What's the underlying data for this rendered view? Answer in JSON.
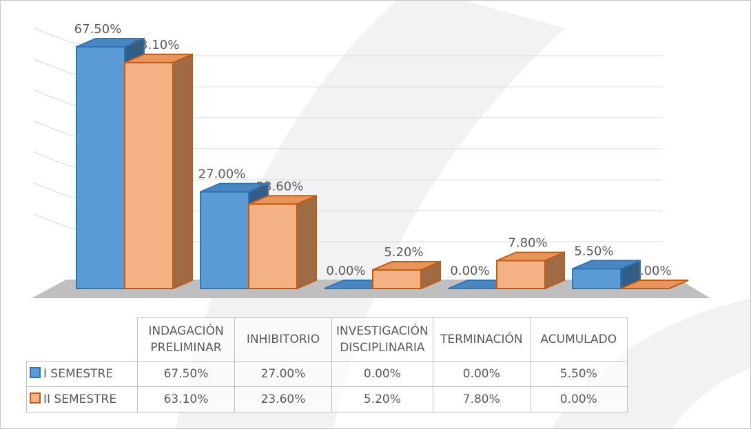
{
  "chart_data": {
    "type": "bar3d",
    "categories": [
      "INDAGACIÓN PRELIMINAR",
      "INHIBITORIO",
      "INVESTIGACIÓN DISCIPLINARIA",
      "TERMINACIÓN",
      "ACUMULADO"
    ],
    "series": [
      {
        "name": "I SEMESTRE",
        "color": "#5b9bd5",
        "values": [
          67.5,
          27,
          0,
          0,
          5.5
        ],
        "value_labels": [
          "67.50%",
          "27.00%",
          "0.00%",
          "0.00%",
          "5.50%"
        ]
      },
      {
        "name": "II SEMESTRE",
        "color": "#f4b183",
        "values": [
          63.1,
          23.6,
          5.2,
          7.8,
          0
        ],
        "value_labels": [
          "63.10%",
          "23.60%",
          "5.20%",
          "7.80%",
          "0.00%"
        ]
      }
    ],
    "ylim": [
      0,
      70
    ],
    "yticks": [
      0,
      10,
      20,
      30,
      40,
      50,
      60,
      70
    ],
    "grid": true
  }
}
